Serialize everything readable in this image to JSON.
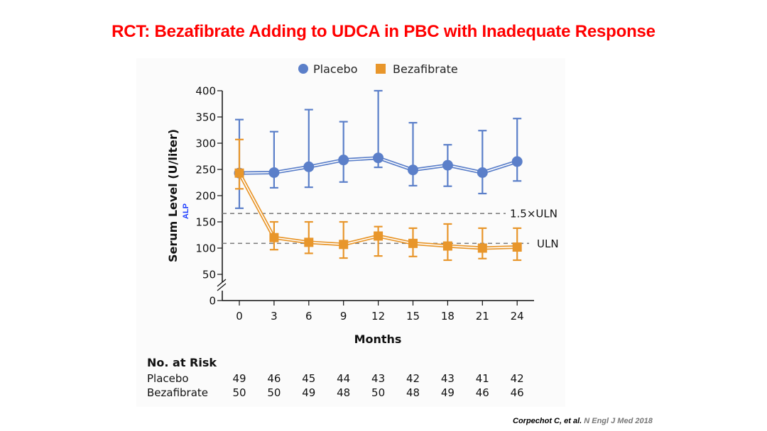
{
  "slide": {
    "title": "RCT: Bezafibrate Adding to UDCA in PBC with Inadequate Response",
    "citation_authors": "Corpechot  C, et al.",
    "citation_journal": "N Engl J Med 2018"
  },
  "colors": {
    "title": "#ff0000",
    "placebo": "#5b7fc9",
    "bezafibrate": "#e8962b",
    "reference_line": "#808080",
    "alp_label": "#1f3fff"
  },
  "chart_data": {
    "type": "line",
    "title": "",
    "xlabel": "Months",
    "ylabel": "Serum Level (U/liter)",
    "ylabel_sub": "ALP",
    "x": [
      0,
      3,
      6,
      9,
      12,
      15,
      18,
      21,
      24
    ],
    "x_tick_labels": [
      "0",
      "3",
      "6",
      "9",
      "12",
      "15",
      "18",
      "21",
      "24"
    ],
    "y_ticks": [
      0,
      50,
      100,
      150,
      200,
      250,
      300,
      350,
      400
    ],
    "y_tick_labels": [
      "0",
      "50",
      "100",
      "150",
      "200",
      "250",
      "300",
      "350",
      "400"
    ],
    "ylim": [
      0,
      400
    ],
    "y_axis_break": true,
    "grid": false,
    "legend_position": "top-center",
    "series": [
      {
        "name": "Placebo",
        "marker": "circle",
        "values": [
          243,
          244,
          255,
          268,
          272,
          249,
          258,
          244,
          265
        ],
        "error_upper": [
          345,
          322,
          364,
          341,
          400,
          339,
          297,
          324,
          347
        ],
        "error_lower": [
          176,
          215,
          216,
          226,
          254,
          219,
          218,
          204,
          228
        ]
      },
      {
        "name": "Bezafibrate",
        "marker": "square",
        "values": [
          243,
          120,
          111,
          107,
          123,
          109,
          104,
          100,
          102
        ],
        "error_upper": [
          307,
          150,
          150,
          150,
          141,
          138,
          146,
          138,
          138
        ],
        "error_lower": [
          213,
          97,
          90,
          81,
          85,
          84,
          77,
          80,
          77
        ]
      }
    ],
    "reference_lines": [
      {
        "label": "1.5×ULN",
        "value": 166
      },
      {
        "label": "ULN",
        "value": 109
      }
    ],
    "risk_table": {
      "title": "No. at Risk",
      "rows": [
        {
          "label": "Placebo",
          "values": [
            "49",
            "46",
            "45",
            "44",
            "43",
            "42",
            "43",
            "41",
            "42"
          ]
        },
        {
          "label": "Bezafibrate",
          "values": [
            "50",
            "50",
            "49",
            "48",
            "50",
            "48",
            "49",
            "46",
            "46"
          ]
        }
      ]
    }
  }
}
